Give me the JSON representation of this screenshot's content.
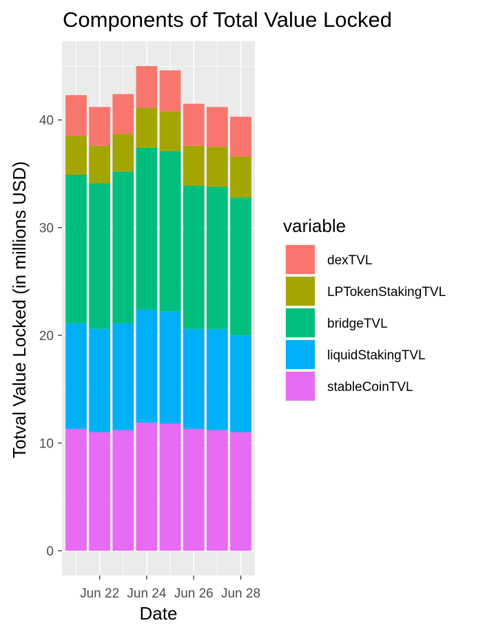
{
  "chart_data": {
    "type": "bar",
    "stacked": true,
    "title": "Components of Total Value Locked",
    "xlabel": "Date",
    "ylabel": "Totval Value Locked (in millions USD)",
    "x": [
      "Jun 21",
      "Jun 22",
      "Jun 23",
      "Jun 24",
      "Jun 25",
      "Jun 26",
      "Jun 27",
      "Jun 28"
    ],
    "x_tick_labels": [
      "Jun 22",
      "Jun 24",
      "Jun 26",
      "Jun 28"
    ],
    "y_ticks": [
      0,
      10,
      20,
      30,
      40
    ],
    "ylim": [
      -2.3,
      47.3
    ],
    "grid": true,
    "legend": {
      "title": "variable",
      "placement": "right"
    },
    "series": [
      {
        "name": "dexTVL",
        "color": "#F8766D",
        "values": [
          3.8,
          3.6,
          3.7,
          3.9,
          3.8,
          3.9,
          3.7,
          3.7
        ]
      },
      {
        "name": "LPTokenStakingTVL",
        "color": "#A3A500",
        "values": [
          3.6,
          3.5,
          3.5,
          3.7,
          3.7,
          3.7,
          3.7,
          3.8
        ]
      },
      {
        "name": "bridgeTVL",
        "color": "#00BF7D",
        "values": [
          13.8,
          13.5,
          14.1,
          15.0,
          14.9,
          13.3,
          13.2,
          12.8
        ]
      },
      {
        "name": "liquidStakingTVL",
        "color": "#00B0F6",
        "values": [
          9.8,
          9.6,
          9.9,
          10.5,
          10.4,
          9.3,
          9.4,
          9.0
        ]
      },
      {
        "name": "stableCoinTVL",
        "color": "#E76BF3",
        "values": [
          11.3,
          11.0,
          11.2,
          11.9,
          11.8,
          11.3,
          11.2,
          11.0
        ]
      }
    ]
  }
}
